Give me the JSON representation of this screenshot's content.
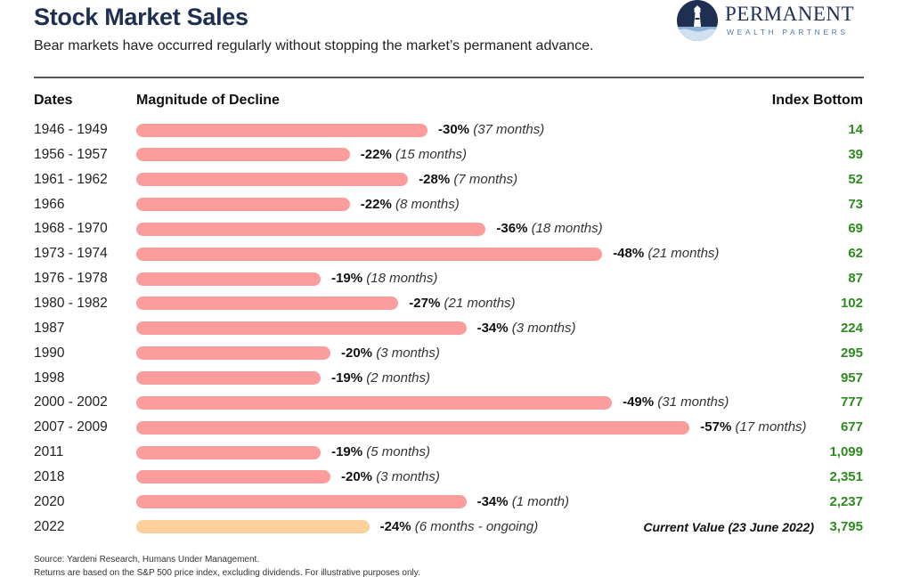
{
  "header": {
    "title": "Stock Market Sales",
    "subtitle": "Bear markets have occurred regularly without stopping the market’s permanent advance."
  },
  "logo": {
    "name": "PERMANENT",
    "tagline": "WEALTH PARTNERS"
  },
  "columns": {
    "dates": "Dates",
    "magnitude": "Magnitude of Decline",
    "bottom": "Index Bottom"
  },
  "current_value_label": "Current Value (23 June 2022)",
  "colors": {
    "bar": "#fd9c9c",
    "bar_ongoing": "#fdd09c",
    "index_bottom": "#2e8b1f",
    "title": "#1f2f52"
  },
  "chart_data": {
    "type": "bar",
    "orientation": "horizontal",
    "categories": [
      "1946 - 1949",
      "1956 - 1957",
      "1961 - 1962",
      "1966",
      "1968 - 1970",
      "1973 - 1974",
      "1976 - 1978",
      "1980 - 1982",
      "1987",
      "1990",
      "1998",
      "2000 - 2002",
      "2007 - 2009",
      "2011",
      "2018",
      "2020",
      "2022"
    ],
    "values": [
      -30,
      -22,
      -28,
      -22,
      -36,
      -48,
      -19,
      -27,
      -34,
      -20,
      -19,
      -49,
      -57,
      -19,
      -20,
      -34,
      -24
    ],
    "value_labels": [
      "-30%",
      "-22%",
      "-28%",
      "-22%",
      "-36%",
      "-48%",
      "-19%",
      "-27%",
      "-34%",
      "-20%",
      "-19%",
      "-49%",
      "-57%",
      "-19%",
      "-20%",
      "-34%",
      "-24%"
    ],
    "durations": [
      "(37 months)",
      "(15 months)",
      "(7 months)",
      "(8 months)",
      "(18 months)",
      "(21 months)",
      "(18 months)",
      "(21 months)",
      "(3 months)",
      "(3 months)",
      "(2 months)",
      "(31 months)",
      "(17 months)",
      "(5 months)",
      "(3 months)",
      "(1 month)",
      "(6 months - ongoing)"
    ],
    "index_bottom": [
      "14",
      "39",
      "52",
      "73",
      "69",
      "62",
      "87",
      "102",
      "224",
      "295",
      "957",
      "777",
      "677",
      "1,099",
      "2,351",
      "2,237",
      "3,795"
    ],
    "ongoing": [
      false,
      false,
      false,
      false,
      false,
      false,
      false,
      false,
      false,
      false,
      false,
      false,
      false,
      false,
      false,
      false,
      true
    ]
  },
  "footer": {
    "source": "Source: Yardeni Research, Humans Under Management.",
    "note": "Returns are based on the S&P 500 price index, excluding dividends. For illustrative purposes only."
  }
}
